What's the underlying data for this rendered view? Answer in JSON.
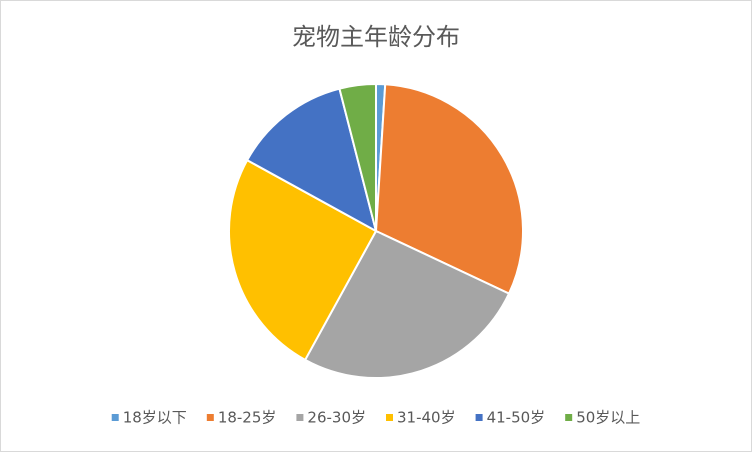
{
  "chart_data": {
    "type": "pie",
    "title": "宠物主年龄分布",
    "categories": [
      "18岁以下",
      "18-25岁",
      "26-30岁",
      "31-40岁",
      "41-50岁",
      "50岁以上"
    ],
    "values": [
      1,
      31,
      26,
      25,
      13,
      4
    ],
    "colors": [
      "#5b9bd5",
      "#ed7d31",
      "#a5a5a5",
      "#ffc000",
      "#4472c4",
      "#70ad47"
    ],
    "legend": "bottom"
  }
}
